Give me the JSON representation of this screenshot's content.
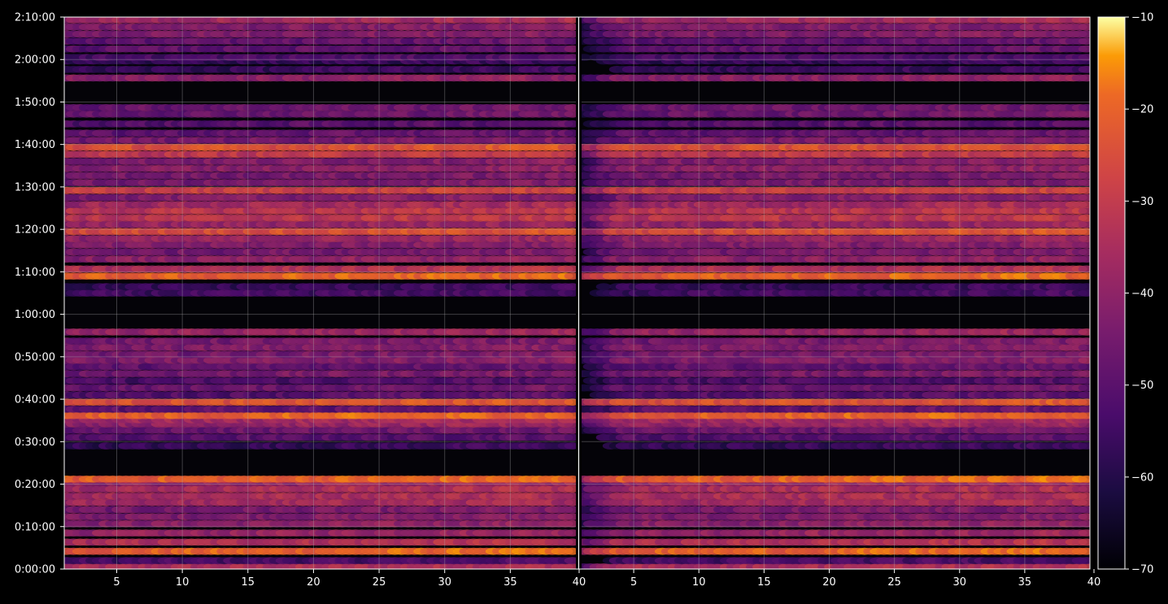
{
  "chart_data": {
    "type": "heatmap",
    "title": "",
    "xlabel": "",
    "ylabel": "",
    "panels": [
      {
        "name": "",
        "x_range": [
          1,
          40
        ]
      },
      {
        "name": "",
        "x_range": [
          1,
          40
        ]
      }
    ],
    "x_ticks": [
      5,
      10,
      15,
      20,
      25,
      30,
      35,
      40
    ],
    "x_tick_labels": [
      "5",
      "10",
      "15",
      "20",
      "25",
      "30",
      "35",
      "40",
      "5",
      "10",
      "15",
      "20",
      "25",
      "30",
      "35",
      "40"
    ],
    "ylim_seconds": [
      0,
      7800
    ],
    "y_ticks": [
      "0:00:00",
      "0:10:00",
      "0:20:00",
      "0:30:00",
      "0:40:00",
      "0:50:00",
      "1:00:00",
      "1:10:00",
      "1:20:00",
      "1:30:00",
      "1:40:00",
      "1:50:00",
      "2:00:00",
      "2:10:00"
    ],
    "colorbar": {
      "range": [
        -70,
        -10
      ],
      "ticks": [
        "−10",
        "−20",
        "−30",
        "−40",
        "−50",
        "−60",
        "−70"
      ],
      "colormap": "inferno"
    },
    "grid": true,
    "band_times": [
      "0:00:30",
      "0:02:00",
      "0:04:10",
      "0:06:20",
      "0:08:30",
      "0:10:40",
      "0:12:20",
      "0:14:00",
      "0:15:40",
      "0:17:10",
      "0:18:50",
      "0:20:20",
      "0:21:10",
      "0:29:00",
      "0:31:00",
      "0:32:40",
      "0:34:10",
      "0:35:10",
      "0:36:10",
      "0:37:40",
      "0:39:20",
      "0:41:00",
      "0:42:40",
      "0:44:20",
      "0:46:00",
      "0:47:40",
      "0:49:10",
      "0:50:30",
      "0:52:10",
      "0:53:40",
      "0:55:50",
      "1:05:00",
      "1:06:30",
      "1:09:00",
      "1:10:40",
      "1:13:00",
      "1:14:40",
      "1:16:20",
      "1:17:50",
      "1:19:30",
      "1:21:10",
      "1:22:40",
      "1:24:20",
      "1:25:50",
      "1:27:30",
      "1:29:10",
      "1:31:00",
      "1:32:40",
      "1:34:20",
      "1:36:00",
      "1:37:40",
      "1:39:20",
      "1:41:00",
      "1:42:40",
      "1:44:50",
      "1:47:10",
      "1:48:40",
      "1:55:40",
      "1:57:40",
      "1:59:40",
      "2:00:30",
      "2:02:30",
      "2:04:20",
      "2:06:00",
      "2:07:40",
      "2:09:20"
    ],
    "band_levels_db": [
      -36,
      -55,
      -22,
      -35,
      -40,
      -42,
      -44,
      -46,
      -38,
      -36,
      -36,
      -40,
      -22,
      -58,
      -52,
      -48,
      -40,
      -38,
      -22,
      -50,
      -25,
      -52,
      -48,
      -54,
      -46,
      -50,
      -44,
      -46,
      -44,
      -46,
      -40,
      -56,
      -58,
      -22,
      -35,
      -42,
      -46,
      -44,
      -40,
      -26,
      -40,
      -33,
      -33,
      -38,
      -44,
      -30,
      -46,
      -46,
      -42,
      -44,
      -32,
      -25,
      -46,
      -50,
      -52,
      -48,
      -48,
      -42,
      -58,
      -58,
      -54,
      -50,
      -50,
      -44,
      -44,
      -38
    ]
  }
}
